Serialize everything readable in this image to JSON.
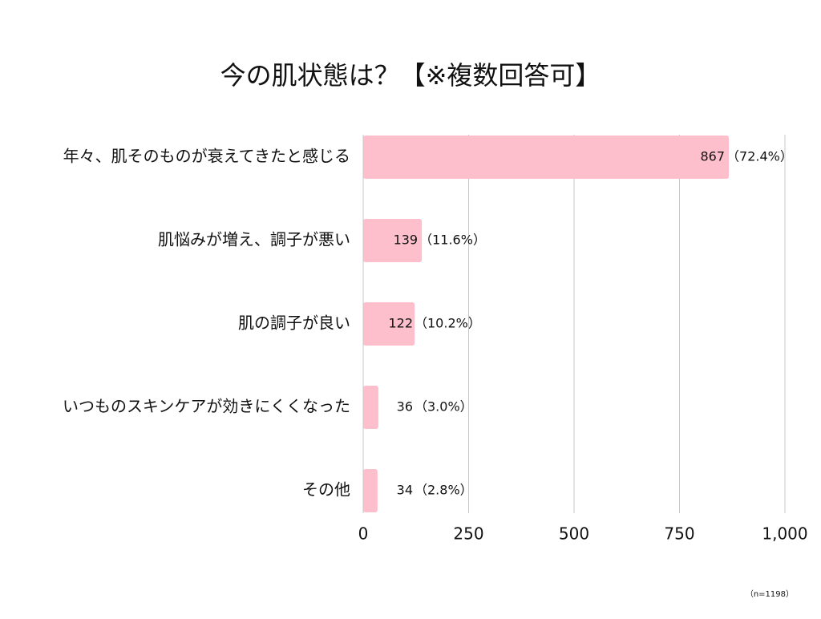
{
  "chart_data": {
    "type": "hbar",
    "title": "今の肌状態は？【※複数回答可】",
    "categories": [
      "年々、肌そのものが衰えてきたと感じる",
      "肌悩みが増え、調子が悪い",
      "肌の調子が良い",
      "いつものスキンケアが効きにくくなった",
      "その他"
    ],
    "values": [
      867,
      139,
      122,
      36,
      34
    ],
    "percent_labels": [
      "（72.4%）",
      "（11.6%）",
      "（10.2%）",
      "（3.0%）",
      "（2.8%）"
    ],
    "color": "#fdbfcb",
    "xlim": [
      0,
      1000
    ],
    "xticks": [
      0,
      250,
      500,
      750,
      {
        "value": 1000,
        "label": "1,000"
      }
    ],
    "grid": true,
    "note": "（n=1198）"
  }
}
